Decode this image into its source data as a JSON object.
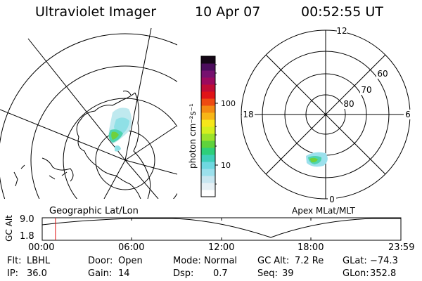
{
  "header": {
    "title": "Ultraviolet Imager",
    "date": "10 Apr 07",
    "time": "00:52:55 UT"
  },
  "colorbar": {
    "unit_label": "photon cm⁻²s⁻¹",
    "tick_100": "100",
    "tick_10": "10",
    "colors": [
      "#ffffff",
      "#e6f0f5",
      "#c8e6f0",
      "#9be0ec",
      "#6fd8e0",
      "#3fcfb9",
      "#2ecf7a",
      "#5fd23c",
      "#9be22a",
      "#d4ef1e",
      "#f6e71a",
      "#f8b617",
      "#f48a13",
      "#ee4a12",
      "#e01418",
      "#c00c36",
      "#9c0a5e",
      "#76116f",
      "#4b0c5c",
      "#140616"
    ]
  },
  "geo_map": {
    "label": "Geographic Lat/Lon"
  },
  "apex_map": {
    "label": "Apex MLat/MLT",
    "mlt_top": "12",
    "mlt_left": "18",
    "mlt_right": "6",
    "mlt_bottom": "0",
    "lat_60": "60",
    "lat_70": "70",
    "lat_80": "80"
  },
  "orbit_plot": {
    "y_label": "GC Alt",
    "y_max": "9.0",
    "y_min": "1.8",
    "x_ticks": [
      "00:00",
      "06:00",
      "12:00",
      "18:00",
      "23:59"
    ],
    "marker_time_fraction": 0.037
  },
  "info": {
    "flt_label": "Flt:",
    "flt_value": "LBHL",
    "ip_label": "IP:",
    "ip_value": "36.0",
    "door_label": "Door:",
    "door_value": "Open",
    "gain_label": "Gain:",
    "gain_value": "14",
    "mode_label": "Mode:",
    "mode_value": "Normal",
    "dsp_label": "Dsp:",
    "dsp_value": "0.7",
    "gcalt_label": "GC Alt:",
    "gcalt_value": "7.2 Re",
    "seq_label": "Seq:",
    "seq_value": "39",
    "glat_label": "GLat:",
    "glat_value": "−74.3",
    "glon_label": "GLon:",
    "glon_value": "352.8"
  }
}
